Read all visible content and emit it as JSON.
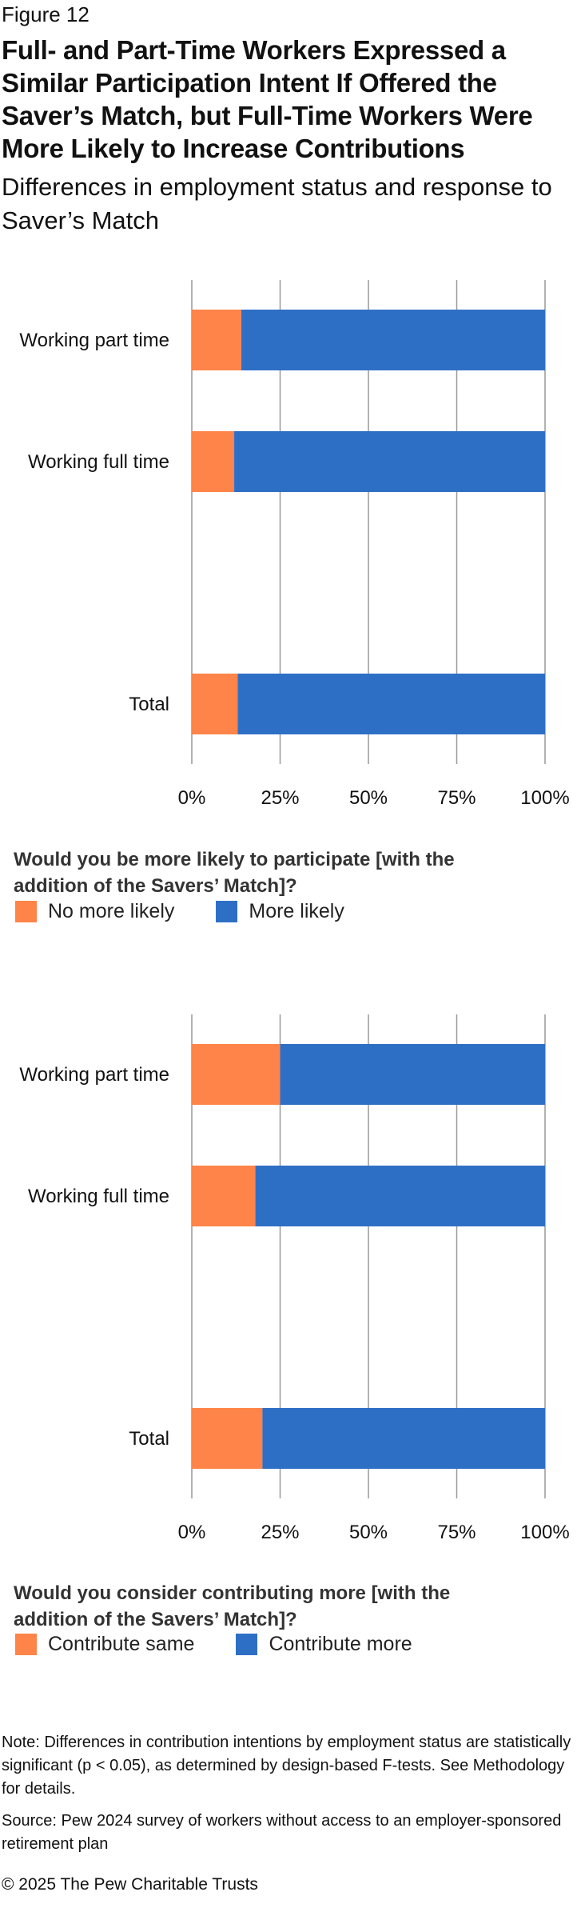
{
  "figure_label": "Figure 12",
  "title": "Full- and Part-Time Workers Expressed a Similar Participation Intent If Offered the Saver’s Match, but Full-Time Workers Were More Likely to Increase Contributions",
  "subtitle": "Differences in employment status and response to Saver’s Match",
  "colors": {
    "orange": "#FF8449",
    "blue": "#2E6FC6",
    "grid": "#999999"
  },
  "chart_data": [
    {
      "type": "bar",
      "orientation": "horizontal",
      "stacked": true,
      "normalized": true,
      "categories": [
        "Working part time",
        "Working full time",
        "Total"
      ],
      "series": [
        {
          "name": "No more likely",
          "values": [
            14,
            12,
            13
          ],
          "color": "#FF8449"
        },
        {
          "name": "More likely",
          "values": [
            86,
            88,
            87
          ],
          "color": "#2E6FC6"
        }
      ],
      "xlim": [
        0,
        100
      ],
      "ticks": [
        "0%",
        "25%",
        "50%",
        "75%",
        "100%"
      ],
      "grid": true,
      "legend_placement": "bottom",
      "question": "Would you be more likely to participate [with the addition of the Savers’ Match]?"
    },
    {
      "type": "bar",
      "orientation": "horizontal",
      "stacked": true,
      "normalized": true,
      "categories": [
        "Working part time",
        "Working full time",
        "Total"
      ],
      "series": [
        {
          "name": "Contribute same",
          "values": [
            25,
            18,
            20
          ],
          "color": "#FF8449"
        },
        {
          "name": "Contribute more",
          "values": [
            75,
            82,
            80
          ],
          "color": "#2E6FC6"
        }
      ],
      "xlim": [
        0,
        100
      ],
      "ticks": [
        "0%",
        "25%",
        "50%",
        "75%",
        "100%"
      ],
      "grid": true,
      "legend_placement": "bottom",
      "question": "Would you consider contributing more [with the addition of the Savers’ Match]?"
    }
  ],
  "note": "Note: Differences in contribution intentions by employment status are statistically significant (p < 0.05), as determined by design-based F-tests. See Methodology for details.",
  "source": "Source: Pew 2024 survey of workers without access to an employer-sponsored retirement plan",
  "copyright": "© 2025 The Pew Charitable Trusts"
}
